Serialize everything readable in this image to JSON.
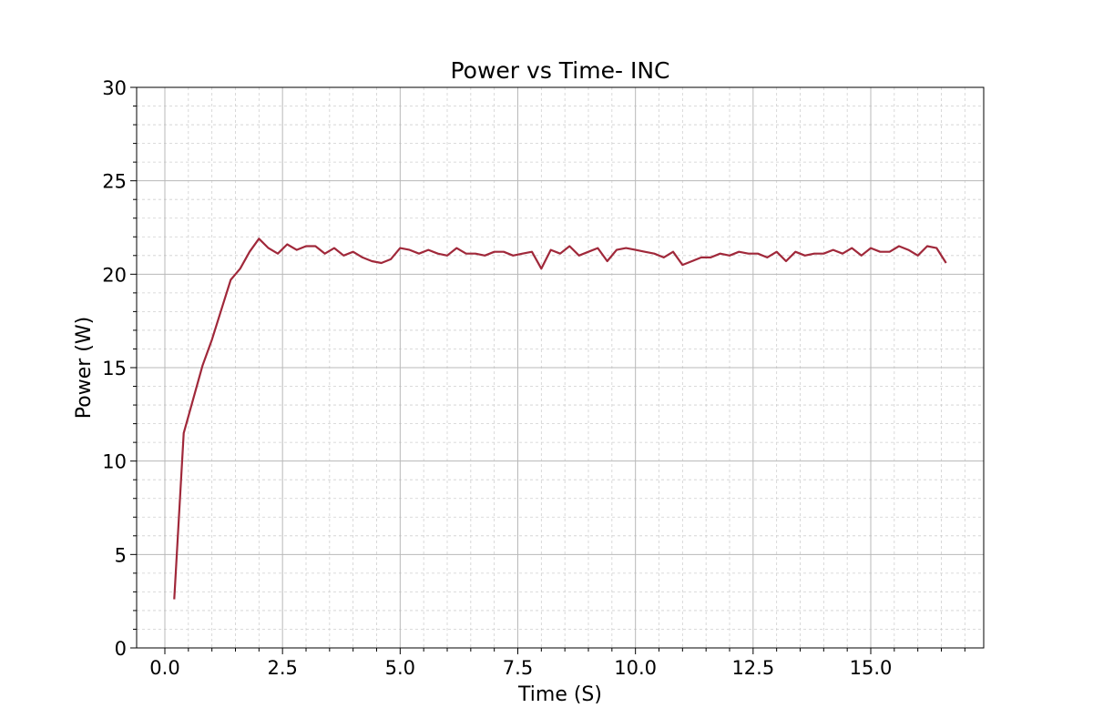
{
  "chart_data": {
    "type": "line",
    "title": "Power vs Time- INC",
    "xlabel": "Time (S)",
    "ylabel": "Power (W)",
    "xlim": [
      -0.6,
      17.4
    ],
    "ylim": [
      0,
      30
    ],
    "xticks": [
      0.0,
      2.5,
      5.0,
      7.5,
      10.0,
      12.5,
      15.0
    ],
    "xtick_labels": [
      "0.0",
      "2.5",
      "5.0",
      "7.5",
      "10.0",
      "12.5",
      "15.0"
    ],
    "yticks": [
      0,
      5,
      10,
      15,
      20,
      25,
      30
    ],
    "ytick_labels": [
      "0",
      "5",
      "10",
      "15",
      "20",
      "25",
      "30"
    ],
    "grid": true,
    "legend": "none",
    "series": [
      {
        "color": "#a0283a",
        "x": [
          0.2,
          0.4,
          0.6,
          0.8,
          1.0,
          1.2,
          1.4,
          1.6,
          1.8,
          2.0,
          2.2,
          2.4,
          2.6,
          2.8,
          3.0,
          3.2,
          3.4,
          3.6,
          3.8,
          4.0,
          4.2,
          4.4,
          4.6,
          4.8,
          5.0,
          5.2,
          5.4,
          5.6,
          5.8,
          6.0,
          6.2,
          6.4,
          6.6,
          6.8,
          7.0,
          7.2,
          7.4,
          7.6,
          7.8,
          8.0,
          8.2,
          8.4,
          8.6,
          8.8,
          9.0,
          9.2,
          9.4,
          9.6,
          9.8,
          10.0,
          10.2,
          10.4,
          10.6,
          10.8,
          11.0,
          11.2,
          11.4,
          11.6,
          11.8,
          12.0,
          12.2,
          12.4,
          12.6,
          12.8,
          13.0,
          13.2,
          13.4,
          13.6,
          13.8,
          14.0,
          14.2,
          14.4,
          14.6,
          14.8,
          15.0,
          15.2,
          15.4,
          15.6,
          15.8,
          16.0,
          16.2,
          16.4,
          16.6
        ],
        "y": [
          2.6,
          11.5,
          13.3,
          15.1,
          16.5,
          18.1,
          19.7,
          20.3,
          21.2,
          21.9,
          21.4,
          21.1,
          21.6,
          21.3,
          21.5,
          21.5,
          21.1,
          21.4,
          21.0,
          21.2,
          20.9,
          20.7,
          20.6,
          20.8,
          21.4,
          21.3,
          21.1,
          21.3,
          21.1,
          21.0,
          21.4,
          21.1,
          21.1,
          21.0,
          21.2,
          21.2,
          21.0,
          21.1,
          21.2,
          20.3,
          21.3,
          21.1,
          21.5,
          21.0,
          21.2,
          21.4,
          20.7,
          21.3,
          21.4,
          21.3,
          21.2,
          21.1,
          20.9,
          21.2,
          20.5,
          20.7,
          20.9,
          20.9,
          21.1,
          21.0,
          21.2,
          21.1,
          21.1,
          20.9,
          21.2,
          20.7,
          21.2,
          21.0,
          21.1,
          21.1,
          21.3,
          21.1,
          21.4,
          21.0,
          21.4,
          21.2,
          21.2,
          21.5,
          21.3,
          21.0,
          21.5,
          21.4,
          20.6
        ]
      }
    ]
  }
}
